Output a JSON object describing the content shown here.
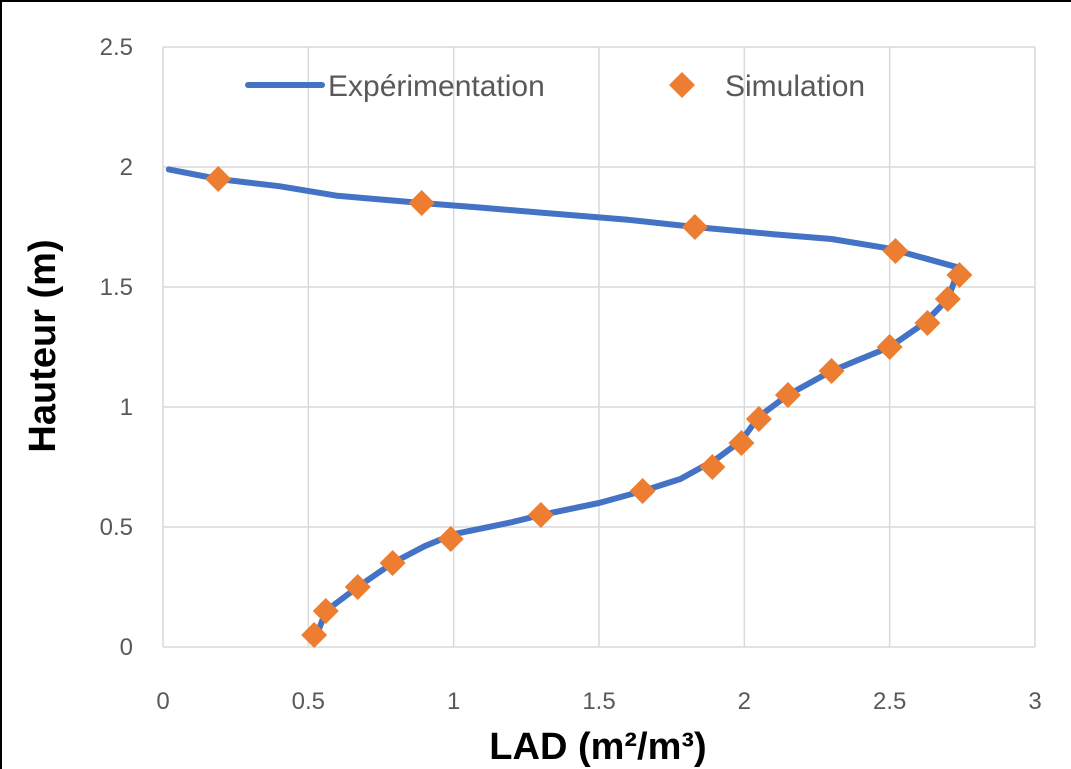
{
  "chart_data": {
    "type": "line",
    "xlabel": "LAD  (m²/m³)",
    "ylabel": "Hauteur (m)",
    "xlim": [
      0,
      3
    ],
    "ylim": [
      0,
      2.5
    ],
    "xticks": [
      0,
      0.5,
      1,
      1.5,
      2,
      2.5,
      3
    ],
    "yticks": [
      0,
      0.5,
      1,
      1.5,
      2,
      2.5
    ],
    "xtick_labels": [
      "0",
      "0.5",
      "1",
      "1.5",
      "2",
      "2.5",
      "3"
    ],
    "ytick_labels": [
      "0",
      "0.5",
      "1",
      "1.5",
      "2",
      "2.5"
    ],
    "grid": true,
    "legend_position": "top",
    "series": [
      {
        "name": "Expérimentation",
        "kind": "line",
        "color": "#4472c4",
        "points": [
          [
            0.52,
            0.02
          ],
          [
            0.56,
            0.15
          ],
          [
            0.67,
            0.25
          ],
          [
            0.79,
            0.35
          ],
          [
            0.9,
            0.42
          ],
          [
            1.0,
            0.47
          ],
          [
            1.2,
            0.52
          ],
          [
            1.3,
            0.55
          ],
          [
            1.5,
            0.6
          ],
          [
            1.65,
            0.65
          ],
          [
            1.78,
            0.7
          ],
          [
            1.9,
            0.78
          ],
          [
            1.99,
            0.86
          ],
          [
            2.05,
            0.96
          ],
          [
            2.15,
            1.05
          ],
          [
            2.3,
            1.15
          ],
          [
            2.5,
            1.25
          ],
          [
            2.62,
            1.35
          ],
          [
            2.7,
            1.45
          ],
          [
            2.74,
            1.58
          ],
          [
            2.62,
            1.62
          ],
          [
            2.5,
            1.66
          ],
          [
            2.3,
            1.7
          ],
          [
            2.1,
            1.72
          ],
          [
            1.83,
            1.75
          ],
          [
            1.6,
            1.78
          ],
          [
            1.3,
            1.81
          ],
          [
            1.1,
            1.83
          ],
          [
            0.89,
            1.85
          ],
          [
            0.6,
            1.88
          ],
          [
            0.4,
            1.92
          ],
          [
            0.19,
            1.95
          ],
          [
            0.02,
            1.99
          ]
        ]
      },
      {
        "name": "Simulation",
        "kind": "scatter",
        "marker": "diamond",
        "color": "#ed7d31",
        "points": [
          [
            0.52,
            0.05
          ],
          [
            0.56,
            0.15
          ],
          [
            0.67,
            0.25
          ],
          [
            0.79,
            0.35
          ],
          [
            0.99,
            0.45
          ],
          [
            1.3,
            0.55
          ],
          [
            1.65,
            0.65
          ],
          [
            1.89,
            0.75
          ],
          [
            1.99,
            0.85
          ],
          [
            2.05,
            0.95
          ],
          [
            2.15,
            1.05
          ],
          [
            2.3,
            1.15
          ],
          [
            2.5,
            1.25
          ],
          [
            2.63,
            1.35
          ],
          [
            2.7,
            1.45
          ],
          [
            2.74,
            1.55
          ],
          [
            2.52,
            1.65
          ],
          [
            1.83,
            1.75
          ],
          [
            0.89,
            1.85
          ],
          [
            0.19,
            1.95
          ]
        ]
      }
    ]
  }
}
